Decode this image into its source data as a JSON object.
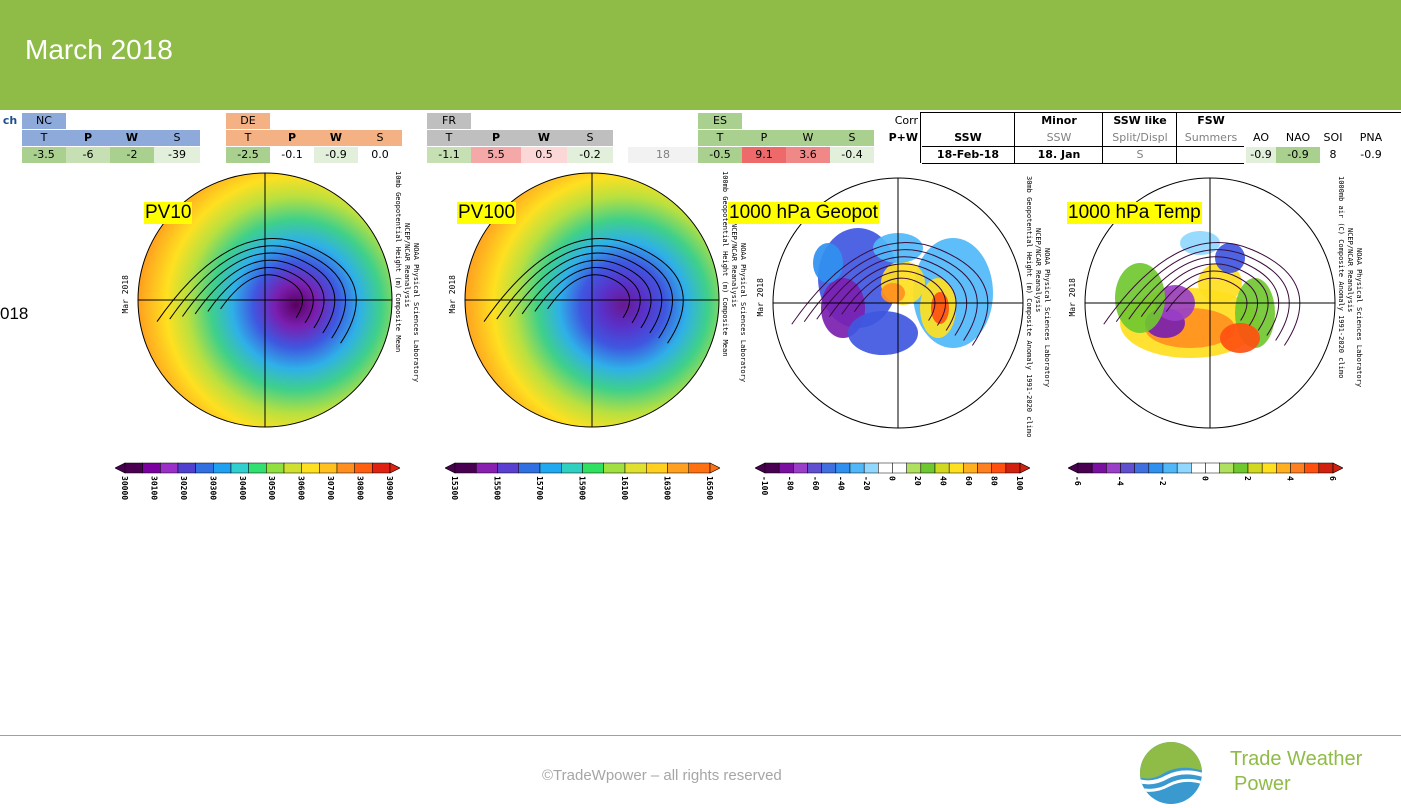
{
  "header": {
    "title": "March 2018"
  },
  "side_label": "018",
  "table": {
    "cells": [
      {
        "t": "ch",
        "x": 0,
        "y": 113,
        "w": 20,
        "bg": "#ffffff",
        "c": "#1f4e8c",
        "b": true
      },
      {
        "t": "NC",
        "x": 22,
        "y": 113,
        "w": 44,
        "bg": "#8eaadb",
        "c": "#000"
      },
      {
        "t": "T",
        "x": 22,
        "y": 130,
        "w": 44,
        "bg": "#8eaadb"
      },
      {
        "t": "P",
        "x": 66,
        "y": 130,
        "w": 44,
        "bg": "#8eaadb",
        "b": true
      },
      {
        "t": "W",
        "x": 110,
        "y": 130,
        "w": 44,
        "bg": "#8eaadb",
        "b": true
      },
      {
        "t": "S",
        "x": 154,
        "y": 130,
        "w": 46,
        "bg": "#8eaadb"
      },
      {
        "t": "-3.5",
        "x": 22,
        "y": 147,
        "w": 44,
        "bg": "#a9d08e"
      },
      {
        "t": "-6",
        "x": 66,
        "y": 147,
        "w": 44,
        "bg": "#c6e0b4"
      },
      {
        "t": "-2",
        "x": 110,
        "y": 147,
        "w": 44,
        "bg": "#a9d08e"
      },
      {
        "t": "-39",
        "x": 154,
        "y": 147,
        "w": 46,
        "bg": "#e2efda"
      },
      {
        "t": "DE",
        "x": 226,
        "y": 113,
        "w": 44,
        "bg": "#f4b183"
      },
      {
        "t": "T",
        "x": 226,
        "y": 130,
        "w": 44,
        "bg": "#f4b183"
      },
      {
        "t": "P",
        "x": 270,
        "y": 130,
        "w": 44,
        "bg": "#f4b183",
        "b": true
      },
      {
        "t": "W",
        "x": 314,
        "y": 130,
        "w": 44,
        "bg": "#f4b183",
        "b": true
      },
      {
        "t": "S",
        "x": 358,
        "y": 130,
        "w": 44,
        "bg": "#f4b183"
      },
      {
        "t": "-2.5",
        "x": 226,
        "y": 147,
        "w": 44,
        "bg": "#a9d08e"
      },
      {
        "t": "-0.1",
        "x": 270,
        "y": 147,
        "w": 44,
        "bg": "#ffffff"
      },
      {
        "t": "-0.9",
        "x": 314,
        "y": 147,
        "w": 44,
        "bg": "#e2efda"
      },
      {
        "t": "0.0",
        "x": 358,
        "y": 147,
        "w": 44,
        "bg": "#ffffff"
      },
      {
        "t": "FR",
        "x": 427,
        "y": 113,
        "w": 44,
        "bg": "#bfbfbf"
      },
      {
        "t": "T",
        "x": 427,
        "y": 130,
        "w": 44,
        "bg": "#bfbfbf"
      },
      {
        "t": "P",
        "x": 471,
        "y": 130,
        "w": 50,
        "bg": "#bfbfbf",
        "b": true
      },
      {
        "t": "W",
        "x": 521,
        "y": 130,
        "w": 46,
        "bg": "#bfbfbf",
        "b": true
      },
      {
        "t": "S",
        "x": 567,
        "y": 130,
        "w": 46,
        "bg": "#bfbfbf"
      },
      {
        "t": "-1.1",
        "x": 427,
        "y": 147,
        "w": 44,
        "bg": "#c6e0b4"
      },
      {
        "t": "5.5",
        "x": 471,
        "y": 147,
        "w": 50,
        "bg": "#f4a8a8"
      },
      {
        "t": "0.5",
        "x": 521,
        "y": 147,
        "w": 46,
        "bg": "#fbd7d7"
      },
      {
        "t": "-0.2",
        "x": 567,
        "y": 147,
        "w": 46,
        "bg": "#e2efda"
      },
      {
        "t": "18",
        "x": 628,
        "y": 147,
        "w": 70,
        "bg": "#f2f2f2",
        "c": "#808080"
      },
      {
        "t": "ES",
        "x": 698,
        "y": 113,
        "w": 44,
        "bg": "#a9d08e"
      },
      {
        "t": "T",
        "x": 698,
        "y": 130,
        "w": 44,
        "bg": "#a9d08e"
      },
      {
        "t": "P",
        "x": 742,
        "y": 130,
        "w": 44,
        "bg": "#a9d08e"
      },
      {
        "t": "W",
        "x": 786,
        "y": 130,
        "w": 44,
        "bg": "#a9d08e"
      },
      {
        "t": "S",
        "x": 830,
        "y": 130,
        "w": 44,
        "bg": "#a9d08e"
      },
      {
        "t": "-0.5",
        "x": 698,
        "y": 147,
        "w": 44,
        "bg": "#a9d08e"
      },
      {
        "t": "9.1",
        "x": 742,
        "y": 147,
        "w": 44,
        "bg": "#ee6a6a"
      },
      {
        "t": "3.6",
        "x": 786,
        "y": 147,
        "w": 44,
        "bg": "#f08888"
      },
      {
        "t": "-0.4",
        "x": 830,
        "y": 147,
        "w": 44,
        "bg": "#e2efda"
      },
      {
        "t": "Corr",
        "x": 874,
        "y": 113,
        "w": 44,
        "bg": "#ffffff",
        "align": "right"
      },
      {
        "t": "P+W",
        "x": 874,
        "y": 130,
        "w": 44,
        "bg": "#ffffff",
        "b": true,
        "align": "right"
      },
      {
        "t": "SSW",
        "x": 922,
        "y": 130,
        "w": 92,
        "bg": "#ffffff",
        "b": true
      },
      {
        "t": "18-Feb-18",
        "x": 922,
        "y": 147,
        "w": 92,
        "bg": "#ffffff",
        "b": true
      },
      {
        "t": "Minor",
        "x": 1016,
        "y": 113,
        "w": 86,
        "bg": "#ffffff",
        "b": true
      },
      {
        "t": "SSW",
        "x": 1016,
        "y": 130,
        "w": 86,
        "bg": "#ffffff",
        "c": "#808080"
      },
      {
        "t": "18. Jan",
        "x": 1016,
        "y": 147,
        "w": 86,
        "bg": "#ffffff",
        "b": true
      },
      {
        "t": "SSW like",
        "x": 1104,
        "y": 113,
        "w": 72,
        "bg": "#ffffff",
        "b": true
      },
      {
        "t": "Split/Displ",
        "x": 1104,
        "y": 130,
        "w": 72,
        "bg": "#ffffff",
        "c": "#808080"
      },
      {
        "t": "S",
        "x": 1104,
        "y": 147,
        "w": 72,
        "bg": "#ffffff",
        "c": "#808080"
      },
      {
        "t": "FSW",
        "x": 1178,
        "y": 113,
        "w": 66,
        "bg": "#ffffff",
        "b": true
      },
      {
        "t": "Summers",
        "x": 1178,
        "y": 130,
        "w": 66,
        "bg": "#ffffff",
        "c": "#808080"
      },
      {
        "t": "AO",
        "x": 1246,
        "y": 130,
        "w": 30,
        "bg": "#ffffff"
      },
      {
        "t": "NAO",
        "x": 1276,
        "y": 130,
        "w": 44,
        "bg": "#ffffff"
      },
      {
        "t": "SOI",
        "x": 1320,
        "y": 130,
        "w": 26,
        "bg": "#ffffff"
      },
      {
        "t": "PNA",
        "x": 1346,
        "y": 130,
        "w": 50,
        "bg": "#ffffff"
      },
      {
        "t": "-0.9",
        "x": 1246,
        "y": 147,
        "w": 30,
        "bg": "#e2efda"
      },
      {
        "t": "-0.9",
        "x": 1276,
        "y": 147,
        "w": 44,
        "bg": "#a9d08e"
      },
      {
        "t": "8",
        "x": 1320,
        "y": 147,
        "w": 26,
        "bg": "#ffffff"
      },
      {
        "t": "-0.9",
        "x": 1346,
        "y": 147,
        "w": 50,
        "bg": "#ffffff"
      }
    ]
  },
  "maps": [
    {
      "id": "pv10",
      "label": "PV10",
      "cx": 265,
      "cy": 300,
      "r": 127,
      "lx": 144,
      "ly": 202,
      "gradient": [
        "#5a0060",
        "#7a1fb0",
        "#3f57e0",
        "#2fb0e8",
        "#3fd08a",
        "#b8e040",
        "#ffe020",
        "#ffb020",
        "#ff7a10",
        "#e43018"
      ],
      "side_text": [
        "10mb Geopotential Height (m) Composite Mean",
        "NCEP/NCAR Reanalysis",
        "NOAA Physical Sciences Laboratory"
      ],
      "date": "Mar 2018",
      "cbar": {
        "x": 115,
        "y": 462,
        "w": 285,
        "colors": [
          "#4a0050",
          "#7a00a0",
          "#9a30c8",
          "#5040d0",
          "#3070e0",
          "#20a0f0",
          "#30d0d0",
          "#30e070",
          "#90e040",
          "#d0e030",
          "#ffe020",
          "#ffc020",
          "#ff9020",
          "#ff6010",
          "#e02010"
        ],
        "ticks": [
          "30000",
          "30100",
          "30200",
          "30300",
          "30400",
          "30500",
          "30600",
          "30700",
          "30800",
          "30900"
        ]
      }
    },
    {
      "id": "pv100",
      "label": "PV100",
      "cx": 592,
      "cy": 300,
      "r": 127,
      "lx": 457,
      "ly": 202,
      "gradient": [
        "#6a1890",
        "#5a30c8",
        "#3f57e0",
        "#2fb0e8",
        "#3fd08a",
        "#b8e040",
        "#ffe020",
        "#ffb020",
        "#ff8a18",
        "#f06a10"
      ],
      "side_text": [
        "100mb Geopotential Height (m) Composite Mean",
        "NCEP/NCAR Reanalysis",
        "NOAA Physical Sciences Laboratory"
      ],
      "date": "Mar 2018",
      "cbar": {
        "x": 445,
        "y": 462,
        "w": 275,
        "colors": [
          "#4a0050",
          "#8a20b0",
          "#5a40d0",
          "#3070e0",
          "#20a8f0",
          "#30d0c0",
          "#30e060",
          "#a0e040",
          "#e0e030",
          "#ffd020",
          "#ffa020",
          "#ff7010"
        ],
        "ticks": [
          "15300",
          "15500",
          "15700",
          "15900",
          "16100",
          "16300",
          "16500"
        ]
      }
    },
    {
      "id": "geo",
      "label": "1000 hPa Geopot",
      "cx": 898,
      "cy": 303,
      "r": 125,
      "lx": 728,
      "ly": 202,
      "anomaly": true,
      "side_text": [
        "30mb Geopotential Height (m) Composite Anomaly 1991-2020 climo",
        "NCEP/NCAR Reanalysis",
        "NOAA Physical Sciences Laboratory"
      ],
      "date": "Mar 2018",
      "cbar": {
        "x": 755,
        "y": 462,
        "w": 275,
        "colors": [
          "#4a0050",
          "#7a10a0",
          "#9a40c8",
          "#6050d0",
          "#4070e0",
          "#3090f0",
          "#50b8f8",
          "#90d8ff",
          "#ffffff",
          "#ffffff",
          "#b0e060",
          "#70c830",
          "#d0d820",
          "#ffe020",
          "#ffb020",
          "#ff8020",
          "#ff5010",
          "#d02010"
        ],
        "ticks": [
          "-100",
          "-80",
          "-60",
          "-40",
          "-20",
          "0",
          "20",
          "40",
          "60",
          "80",
          "100"
        ]
      }
    },
    {
      "id": "temp",
      "label": "1000 hPa Temp",
      "cx": 1210,
      "cy": 303,
      "r": 125,
      "lx": 1067,
      "ly": 202,
      "anomaly": true,
      "side_text": [
        "1000mb air (C) Composite Anomaly 1991-2020 climo",
        "NCEP/NCAR Reanalysis",
        "NOAA Physical Sciences Laboratory"
      ],
      "date": "Mar 2018",
      "cbar": {
        "x": 1068,
        "y": 462,
        "w": 275,
        "colors": [
          "#4a0050",
          "#7a10a0",
          "#9a40c8",
          "#6050d0",
          "#4070e0",
          "#3090f0",
          "#50b8f8",
          "#90d8ff",
          "#ffffff",
          "#ffffff",
          "#b0e060",
          "#70c830",
          "#d0d820",
          "#ffe020",
          "#ffb020",
          "#ff8020",
          "#ff5010",
          "#d02010"
        ],
        "ticks": [
          "-6",
          "-4",
          "-2",
          "0",
          "2",
          "4",
          "6"
        ]
      }
    }
  ],
  "footer": {
    "copyright": "©TradeWpower – all rights reserved",
    "brand_line1": "Trade Weather",
    "brand_line2": "Power"
  }
}
